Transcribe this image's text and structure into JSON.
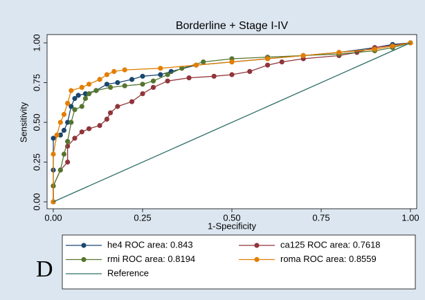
{
  "chart_data": {
    "type": "line",
    "title": "Borderline + Stage I-IV",
    "x_label": "1-Specificity",
    "y_label": "Sensitivity",
    "annotation": "D",
    "xlim": [
      0,
      1
    ],
    "ylim": [
      0,
      1
    ],
    "xticks": [
      {
        "value": 0,
        "label": "0.00"
      },
      {
        "value": 0.25,
        "label": "0.25"
      },
      {
        "value": 0.5,
        "label": "0.50"
      },
      {
        "value": 0.75,
        "label": "0.75"
      },
      {
        "value": 1,
        "label": "1.00"
      }
    ],
    "yticks": [
      {
        "value": 0,
        "label": "0.00"
      },
      {
        "value": 0.25,
        "label": "0.25"
      },
      {
        "value": 0.5,
        "label": "0.50"
      },
      {
        "value": 0.75,
        "label": "0.75"
      },
      {
        "value": 1,
        "label": "1.00"
      }
    ],
    "grid": false,
    "series": [
      {
        "name": "he4 ROC area: 0.843",
        "color": "#1a476f",
        "marker": true,
        "x": [
          0,
          0,
          0,
          0.02,
          0.03,
          0.04,
          0.05,
          0.06,
          0.07,
          0.09,
          0.12,
          0.15,
          0.18,
          0.22,
          0.25,
          0.3,
          0.33,
          0.4,
          0.5,
          0.6,
          0.7,
          0.8,
          0.9,
          0.95,
          1
        ],
        "values": [
          0,
          0.2,
          0.4,
          0.42,
          0.45,
          0.5,
          0.6,
          0.65,
          0.67,
          0.68,
          0.7,
          0.74,
          0.75,
          0.77,
          0.79,
          0.8,
          0.82,
          0.86,
          0.88,
          0.9,
          0.92,
          0.94,
          0.97,
          0.99,
          1
        ]
      },
      {
        "name": "ca125 ROC area: 0.7618",
        "color": "#90353b",
        "marker": true,
        "x": [
          0,
          0,
          0.02,
          0.04,
          0.04,
          0.06,
          0.08,
          0.1,
          0.13,
          0.15,
          0.16,
          0.18,
          0.22,
          0.25,
          0.28,
          0.32,
          0.38,
          0.45,
          0.5,
          0.55,
          0.6,
          0.64,
          0.7,
          0.8,
          0.85,
          0.9,
          1
        ],
        "values": [
          0,
          0.1,
          0.2,
          0.25,
          0.35,
          0.4,
          0.44,
          0.46,
          0.48,
          0.52,
          0.56,
          0.6,
          0.63,
          0.68,
          0.72,
          0.76,
          0.78,
          0.79,
          0.8,
          0.82,
          0.86,
          0.88,
          0.9,
          0.92,
          0.94,
          0.97,
          1
        ]
      },
      {
        "name": "rmi ROC area: 0.8194",
        "color": "#55752f",
        "marker": true,
        "x": [
          0,
          0,
          0.02,
          0.03,
          0.04,
          0.05,
          0.06,
          0.08,
          0.09,
          0.1,
          0.12,
          0.16,
          0.2,
          0.25,
          0.28,
          0.32,
          0.36,
          0.42,
          0.5,
          0.6,
          0.7,
          0.8,
          0.9,
          0.95,
          1
        ],
        "values": [
          0,
          0.1,
          0.2,
          0.3,
          0.38,
          0.5,
          0.58,
          0.6,
          0.65,
          0.68,
          0.7,
          0.72,
          0.73,
          0.74,
          0.76,
          0.8,
          0.84,
          0.88,
          0.9,
          0.91,
          0.92,
          0.93,
          0.95,
          0.97,
          1
        ]
      },
      {
        "name": "roma ROC area: 0.8559",
        "color": "#e37e00",
        "marker": true,
        "x": [
          0,
          0,
          0.01,
          0.02,
          0.03,
          0.04,
          0.05,
          0.08,
          0.1,
          0.13,
          0.15,
          0.17,
          0.2,
          0.3,
          0.4,
          0.5,
          0.6,
          0.7,
          0.8,
          0.9,
          0.95,
          1
        ],
        "values": [
          0,
          0.3,
          0.42,
          0.5,
          0.55,
          0.62,
          0.7,
          0.72,
          0.74,
          0.77,
          0.8,
          0.82,
          0.83,
          0.84,
          0.86,
          0.88,
          0.9,
          0.92,
          0.94,
          0.96,
          0.98,
          1
        ]
      },
      {
        "name": "Reference",
        "color": "#2d6d66",
        "marker": false,
        "x": [
          0,
          1
        ],
        "values": [
          0,
          1
        ]
      }
    ]
  }
}
